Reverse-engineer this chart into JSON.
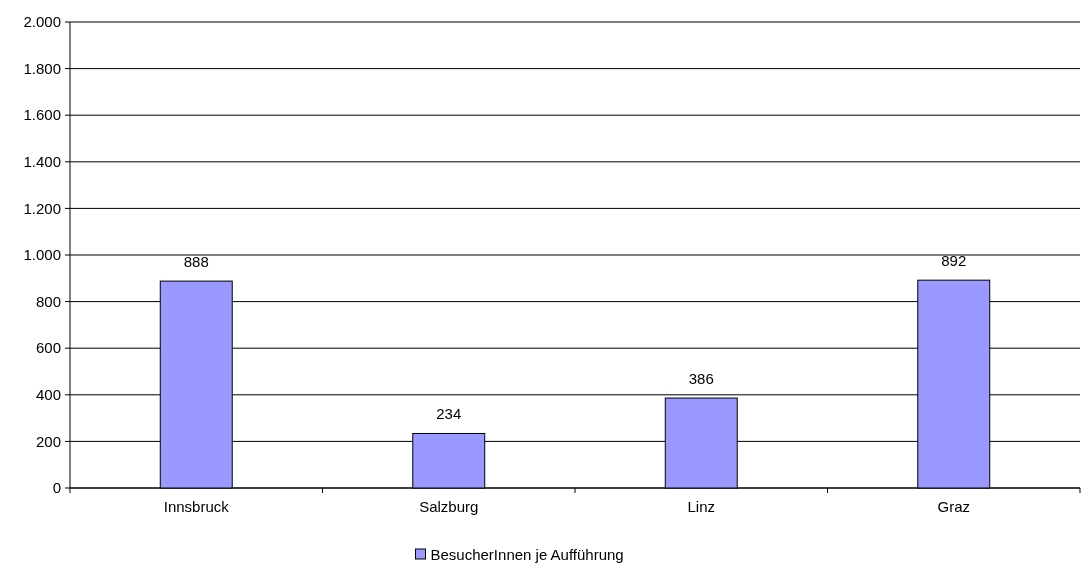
{
  "chart_data": {
    "type": "bar",
    "categories": [
      "Innsbruck",
      "Salzburg",
      "Linz",
      "Graz"
    ],
    "series": [
      {
        "name": "BesucherInnen je Aufführung",
        "color": "#9999ff",
        "values": [
          888,
          234,
          386,
          892
        ]
      }
    ],
    "data_labels": true,
    "ylim": [
      0,
      2000
    ],
    "yticks": [
      0,
      200,
      400,
      600,
      800,
      {
        "value": 1000,
        "label": "1.000"
      },
      {
        "value": 1200,
        "label": "1.200"
      },
      {
        "value": 1400,
        "label": "1.400"
      },
      {
        "value": 1600,
        "label": "1.600"
      },
      {
        "value": 1800,
        "label": "1.800"
      },
      {
        "value": 2000,
        "label": "2.000"
      }
    ],
    "grid": "y",
    "legend": "bottom"
  }
}
